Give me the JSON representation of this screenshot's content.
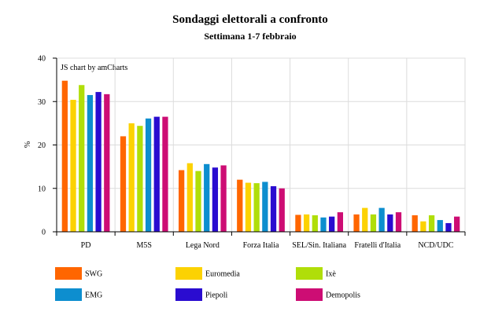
{
  "chart_data": {
    "type": "bar",
    "title": "Sondaggi elettorali a confronto",
    "subtitle": "Settimana 1-7 febbraio",
    "ylabel": "%",
    "xlabel": "",
    "credit": "JS chart by amCharts",
    "ylim": [
      0,
      40
    ],
    "yticks": [
      0,
      10,
      20,
      30,
      40
    ],
    "grid": true,
    "legend_position": "bottom",
    "categories": [
      "PD",
      "M5S",
      "Lega Nord",
      "Forza Italia",
      "SEL/Sin. Italiana",
      "Fratelli d'Italia",
      "NCD/UDC"
    ],
    "series": [
      {
        "name": "SWG",
        "color": "#ff6600",
        "values": [
          34.8,
          22.0,
          14.2,
          12.0,
          3.9,
          4.0,
          3.8
        ]
      },
      {
        "name": "Euromedia",
        "color": "#fcd202",
        "values": [
          30.4,
          25.0,
          15.8,
          11.3,
          4.0,
          5.5,
          2.4
        ]
      },
      {
        "name": "Ixè",
        "color": "#b0de09",
        "values": [
          33.8,
          24.4,
          14.0,
          11.2,
          3.8,
          4.0,
          3.8
        ]
      },
      {
        "name": "EMG",
        "color": "#0d8ecf",
        "values": [
          31.5,
          26.1,
          15.6,
          11.5,
          3.3,
          5.5,
          2.7
        ]
      },
      {
        "name": "Piepoli",
        "color": "#2a0cd0",
        "values": [
          32.2,
          26.5,
          14.8,
          10.5,
          3.5,
          4.0,
          2.0
        ]
      },
      {
        "name": "Demopolis",
        "color": "#cd0d74",
        "values": [
          31.7,
          26.5,
          15.3,
          10.0,
          4.5,
          4.5,
          3.5
        ]
      }
    ]
  }
}
